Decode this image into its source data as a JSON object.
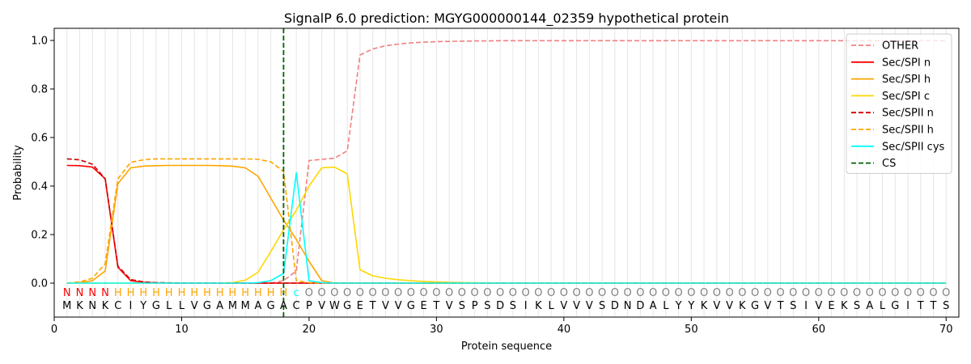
{
  "chart_data": {
    "type": "line",
    "title": "SignalP 6.0 prediction: MGYG000000144_02359 hypothetical protein",
    "xlabel": "Protein sequence",
    "ylabel": "Probability",
    "xlim": [
      0,
      71
    ],
    "ylim": [
      -0.14,
      1.05
    ],
    "xticks": [
      0,
      10,
      20,
      30,
      40,
      50,
      60,
      70
    ],
    "yticks": [
      0.0,
      0.2,
      0.4,
      0.6,
      0.8,
      1.0
    ],
    "x_tick_labels": [
      "0",
      "10",
      "20",
      "30",
      "40",
      "50",
      "60",
      "70"
    ],
    "y_tick_labels": [
      "0.0",
      "0.2",
      "0.4",
      "0.6",
      "0.8",
      "1.0"
    ],
    "grid": "vertical lines at each residue",
    "legend_position": "top-right",
    "sequence": [
      "M",
      "K",
      "N",
      "K",
      "C",
      "I",
      "Y",
      "G",
      "L",
      "L",
      "V",
      "G",
      "A",
      "M",
      "M",
      "A",
      "G",
      "A",
      "C",
      "P",
      "V",
      "W",
      "G",
      "E",
      "T",
      "V",
      "V",
      "G",
      "E",
      "T",
      "V",
      "S",
      "P",
      "S",
      "D",
      "S",
      "I",
      "K",
      "L",
      "V",
      "V",
      "V",
      "S",
      "D",
      "N",
      "D",
      "A",
      "L",
      "Y",
      "Y",
      "K",
      "V",
      "V",
      "K",
      "G",
      "V",
      "T",
      "S",
      "I",
      "V",
      "E",
      "K",
      "S",
      "A",
      "L",
      "G",
      "I",
      "T",
      "T",
      "S"
    ],
    "prediction": [
      "N",
      "N",
      "N",
      "N",
      "H",
      "H",
      "H",
      "H",
      "H",
      "H",
      "H",
      "H",
      "H",
      "H",
      "H",
      "H",
      "H",
      "H",
      "c",
      "O",
      "O",
      "O",
      "O",
      "O",
      "O",
      "O",
      "O",
      "O",
      "O",
      "O",
      "O",
      "O",
      "O",
      "O",
      "O",
      "O",
      "O",
      "O",
      "O",
      "O",
      "O",
      "O",
      "O",
      "O",
      "O",
      "O",
      "O",
      "O",
      "O",
      "O",
      "O",
      "O",
      "O",
      "O",
      "O",
      "O",
      "O",
      "O",
      "O",
      "O",
      "O",
      "O",
      "O",
      "O",
      "O",
      "O",
      "O",
      "O",
      "O",
      "O"
    ],
    "prediction_colors": {
      "N": "#ff0000",
      "H": "#ffa500",
      "c": "#00ffff",
      "O": "#808080"
    },
    "cleavage_site": 18,
    "series": [
      {
        "name": "OTHER",
        "color": "#f08080",
        "dash": true,
        "values": [
          0.0,
          0.0,
          0.0,
          0.0,
          0.0,
          0.0,
          0.0,
          0.0,
          0.0,
          0.0,
          0.0,
          0.0,
          0.0,
          0.0,
          0.0,
          0.0,
          0.0,
          0.01,
          0.05,
          0.505,
          0.51,
          0.515,
          0.545,
          0.94,
          0.965,
          0.978,
          0.985,
          0.99,
          0.993,
          0.995,
          0.996,
          0.997,
          0.998,
          0.998,
          0.999,
          0.999,
          0.999,
          0.999,
          0.999,
          0.999,
          0.999,
          0.999,
          0.999,
          0.999,
          0.999,
          0.999,
          0.999,
          0.999,
          0.999,
          0.999,
          0.999,
          0.999,
          0.999,
          0.999,
          0.999,
          0.999,
          0.999,
          0.999,
          0.999,
          0.999,
          0.999,
          0.999,
          0.999,
          0.999,
          0.999,
          0.999,
          0.999,
          0.999,
          0.999,
          0.999
        ]
      },
      {
        "name": "Sec/SPI n",
        "color": "#ff0000",
        "dash": false,
        "values": [
          0.485,
          0.484,
          0.478,
          0.43,
          0.065,
          0.01,
          0.003,
          0.001,
          0.0,
          0.0,
          0.0,
          0.0,
          0.0,
          0.0,
          0.0,
          0.0,
          0.0,
          0.0,
          0.0,
          0.0,
          0.0,
          0.0,
          0.0,
          0.0,
          0.0,
          0.0,
          0.0,
          0.0,
          0.0,
          0.0,
          0.0,
          0.0,
          0.0,
          0.0,
          0.0,
          0.0,
          0.0,
          0.0,
          0.0,
          0.0,
          0.0,
          0.0,
          0.0,
          0.0,
          0.0,
          0.0,
          0.0,
          0.0,
          0.0,
          0.0,
          0.0,
          0.0,
          0.0,
          0.0,
          0.0,
          0.0,
          0.0,
          0.0,
          0.0,
          0.0,
          0.0,
          0.0,
          0.0,
          0.0,
          0.0,
          0.0,
          0.0,
          0.0,
          0.0,
          0.0
        ]
      },
      {
        "name": "Sec/SPI h",
        "color": "#ffa500",
        "dash": false,
        "values": [
          0.0,
          0.002,
          0.01,
          0.05,
          0.41,
          0.475,
          0.482,
          0.484,
          0.485,
          0.485,
          0.485,
          0.485,
          0.484,
          0.482,
          0.475,
          0.44,
          0.35,
          0.26,
          0.18,
          0.09,
          0.01,
          0.0,
          0.0,
          0.0,
          0.0,
          0.0,
          0.0,
          0.0,
          0.0,
          0.0,
          0.0,
          0.0,
          0.0,
          0.0,
          0.0,
          0.0,
          0.0,
          0.0,
          0.0,
          0.0,
          0.0,
          0.0,
          0.0,
          0.0,
          0.0,
          0.0,
          0.0,
          0.0,
          0.0,
          0.0,
          0.0,
          0.0,
          0.0,
          0.0,
          0.0,
          0.0,
          0.0,
          0.0,
          0.0,
          0.0,
          0.0,
          0.0,
          0.0,
          0.0,
          0.0,
          0.0,
          0.0,
          0.0,
          0.0,
          0.0
        ]
      },
      {
        "name": "Sec/SPI c",
        "color": "#ffd700",
        "dash": false,
        "values": [
          0.0,
          0.0,
          0.0,
          0.0,
          0.0,
          0.0,
          0.0,
          0.0,
          0.0,
          0.0,
          0.0,
          0.0,
          0.0,
          0.002,
          0.012,
          0.045,
          0.13,
          0.22,
          0.3,
          0.4,
          0.475,
          0.478,
          0.45,
          0.055,
          0.03,
          0.02,
          0.014,
          0.01,
          0.007,
          0.005,
          0.003,
          0.002,
          0.001,
          0.001,
          0.0,
          0.0,
          0.0,
          0.0,
          0.0,
          0.0,
          0.0,
          0.0,
          0.0,
          0.0,
          0.0,
          0.0,
          0.0,
          0.0,
          0.0,
          0.0,
          0.0,
          0.0,
          0.0,
          0.0,
          0.0,
          0.0,
          0.0,
          0.0,
          0.0,
          0.0,
          0.0,
          0.0,
          0.0,
          0.0,
          0.0,
          0.0,
          0.0,
          0.0,
          0.0,
          0.0
        ]
      },
      {
        "name": "Sec/SPII n",
        "color": "#cc0000",
        "dash": true,
        "values": [
          0.512,
          0.508,
          0.49,
          0.43,
          0.07,
          0.015,
          0.005,
          0.002,
          0.001,
          0.0,
          0.0,
          0.0,
          0.0,
          0.0,
          0.0,
          0.0,
          0.0,
          0.0,
          0.0,
          0.0,
          0.0,
          0.0,
          0.0,
          0.0,
          0.0,
          0.0,
          0.0,
          0.0,
          0.0,
          0.0,
          0.0,
          0.0,
          0.0,
          0.0,
          0.0,
          0.0,
          0.0,
          0.0,
          0.0,
          0.0,
          0.0,
          0.0,
          0.0,
          0.0,
          0.0,
          0.0,
          0.0,
          0.0,
          0.0,
          0.0,
          0.0,
          0.0,
          0.0,
          0.0,
          0.0,
          0.0,
          0.0,
          0.0,
          0.0,
          0.0,
          0.0,
          0.0,
          0.0,
          0.0,
          0.0,
          0.0,
          0.0,
          0.0,
          0.0,
          0.0
        ]
      },
      {
        "name": "Sec/SPII h",
        "color": "#ffa500",
        "dash": true,
        "values": [
          0.0,
          0.005,
          0.02,
          0.08,
          0.43,
          0.498,
          0.508,
          0.512,
          0.512,
          0.512,
          0.512,
          0.512,
          0.512,
          0.512,
          0.512,
          0.51,
          0.5,
          0.46,
          0.01,
          0.002,
          0.0,
          0.0,
          0.0,
          0.0,
          0.0,
          0.0,
          0.0,
          0.0,
          0.0,
          0.0,
          0.0,
          0.0,
          0.0,
          0.0,
          0.0,
          0.0,
          0.0,
          0.0,
          0.0,
          0.0,
          0.0,
          0.0,
          0.0,
          0.0,
          0.0,
          0.0,
          0.0,
          0.0,
          0.0,
          0.0,
          0.0,
          0.0,
          0.0,
          0.0,
          0.0,
          0.0,
          0.0,
          0.0,
          0.0,
          0.0,
          0.0,
          0.0,
          0.0,
          0.0,
          0.0,
          0.0,
          0.0,
          0.0,
          0.0,
          0.0
        ]
      },
      {
        "name": "Sec/SPII cys",
        "color": "#00ffff",
        "dash": false,
        "values": [
          0.0,
          0.0,
          0.0,
          0.0,
          0.0,
          0.0,
          0.0,
          0.0,
          0.0,
          0.0,
          0.0,
          0.0,
          0.0,
          0.0,
          0.0,
          0.002,
          0.01,
          0.04,
          0.455,
          0.01,
          0.002,
          0.0,
          0.0,
          0.0,
          0.0,
          0.0,
          0.0,
          0.0,
          0.0,
          0.0,
          0.0,
          0.0,
          0.0,
          0.0,
          0.0,
          0.0,
          0.0,
          0.0,
          0.0,
          0.0,
          0.0,
          0.0,
          0.0,
          0.0,
          0.0,
          0.0,
          0.0,
          0.0,
          0.0,
          0.0,
          0.0,
          0.0,
          0.0,
          0.0,
          0.0,
          0.0,
          0.0,
          0.0,
          0.0,
          0.0,
          0.0,
          0.0,
          0.0,
          0.0,
          0.0,
          0.0,
          0.0,
          0.0,
          0.0,
          0.0
        ]
      }
    ],
    "legend": [
      {
        "name": "OTHER",
        "color": "#f08080",
        "dash": true
      },
      {
        "name": "Sec/SPI n",
        "color": "#ff0000",
        "dash": false
      },
      {
        "name": "Sec/SPI h",
        "color": "#ffa500",
        "dash": false
      },
      {
        "name": "Sec/SPI c",
        "color": "#ffd700",
        "dash": false
      },
      {
        "name": "Sec/SPII n",
        "color": "#cc0000",
        "dash": true
      },
      {
        "name": "Sec/SPII h",
        "color": "#ffa500",
        "dash": true
      },
      {
        "name": "Sec/SPII cys",
        "color": "#00ffff",
        "dash": false
      },
      {
        "name": "CS",
        "color": "#006400",
        "dash": true
      }
    ]
  }
}
